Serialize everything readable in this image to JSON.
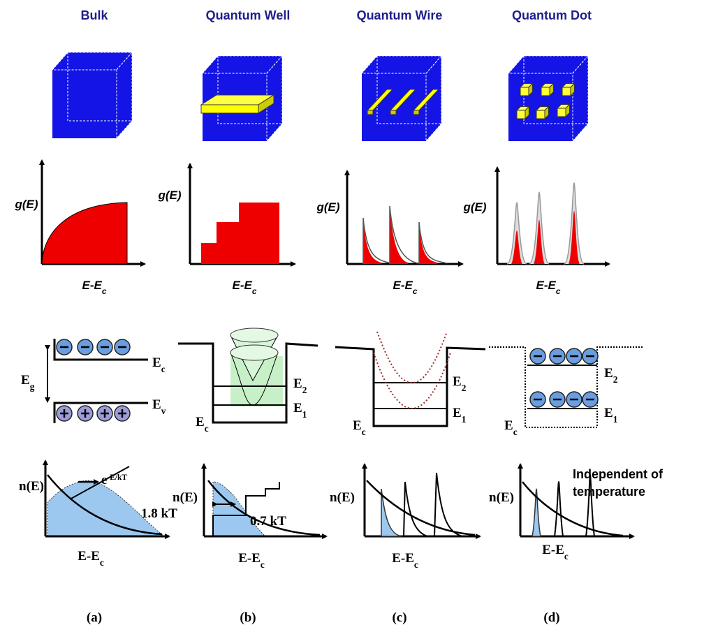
{
  "columns": [
    {
      "title": "Bulk",
      "dos": {
        "y_label": "g(E)",
        "x_label": {
          "main": "E-E",
          "sub": "c"
        }
      },
      "bands": {
        "upper": {
          "main": "E",
          "sub": "c"
        },
        "gap": {
          "main": "E",
          "sub": "g"
        },
        "lower": {
          "main": "E",
          "sub": "v"
        }
      },
      "density": {
        "y_label": "n(E)",
        "x_label": {
          "main": "E-E",
          "sub": "c"
        },
        "exponential": {
          "main": "e",
          "sup": "-E/kT"
        },
        "width": "1.8 kT"
      },
      "caption": "(a)"
    },
    {
      "title": "Quantum Well",
      "dos": {
        "y_label": "g(E)",
        "x_label": {
          "main": "E-E",
          "sub": "c"
        }
      },
      "bands": {
        "upper": {
          "main": "E",
          "sub": "2"
        },
        "lower": {
          "main": "E",
          "sub": "1"
        },
        "edge": {
          "main": "E",
          "sub": "c"
        }
      },
      "density": {
        "y_label": "n(E)",
        "x_label": {
          "main": "E-E",
          "sub": "c"
        },
        "width": "0.7 kT"
      },
      "caption": "(b)"
    },
    {
      "title": "Quantum Wire",
      "dos": {
        "y_label": "g(E)",
        "x_label": {
          "main": "E-E",
          "sub": "c"
        }
      },
      "bands": {
        "upper": {
          "main": "E",
          "sub": "2"
        },
        "lower": {
          "main": "E",
          "sub": "1"
        },
        "edge": {
          "main": "E",
          "sub": "c"
        }
      },
      "density": {
        "y_label": "n(E)",
        "x_label": {
          "main": "E-E",
          "sub": "c"
        }
      },
      "caption": "(c)"
    },
    {
      "title": "Quantum Dot",
      "dos": {
        "y_label": "g(E)",
        "x_label": {
          "main": "E-E",
          "sub": "c"
        }
      },
      "bands": {
        "upper": {
          "main": "E",
          "sub": "2"
        },
        "lower": {
          "main": "E",
          "sub": "1"
        },
        "edge": {
          "main": "E",
          "sub": "c"
        }
      },
      "density": {
        "y_label": "n(E)",
        "x_label": {
          "main": "E-E",
          "sub": "c"
        },
        "note": [
          "Independent of",
          "temperature"
        ]
      },
      "caption": "(d)"
    }
  ]
}
